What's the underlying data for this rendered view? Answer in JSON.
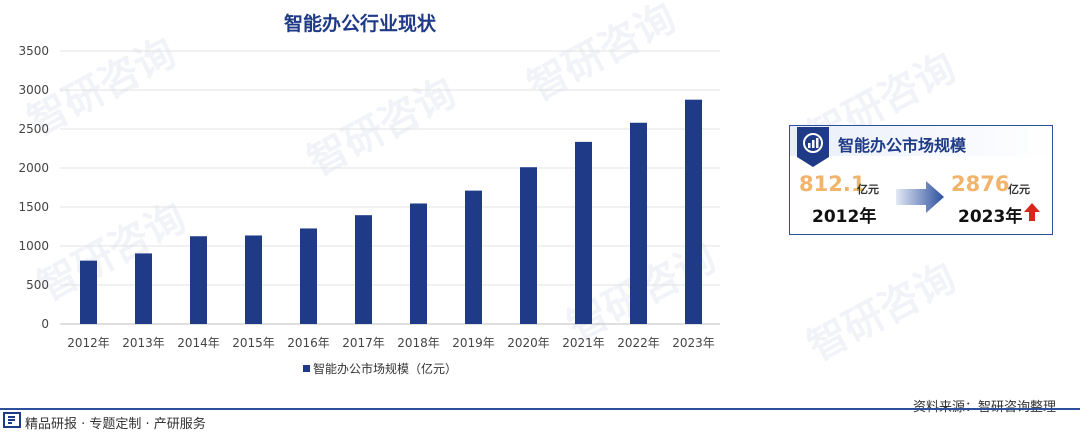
{
  "chart_data": {
    "type": "bar",
    "title": "智能办公行业现状",
    "categories": [
      "2012年",
      "2013年",
      "2014年",
      "2015年",
      "2016年",
      "2017年",
      "2018年",
      "2019年",
      "2020年",
      "2021年",
      "2022年",
      "2023年"
    ],
    "series": [
      {
        "name": "智能办公市场规模（亿元）",
        "values": [
          812.1,
          905,
          1125,
          1135,
          1225,
          1395,
          1545,
          1710,
          2010,
          2335,
          2580,
          2876
        ]
      }
    ],
    "ylim": [
      0,
      3500
    ],
    "yticks": [
      0,
      500,
      1000,
      1500,
      2000,
      2500,
      3000,
      3500
    ],
    "grid": true,
    "legend_position": "bottom",
    "bar_color": "#1f3a86"
  },
  "card": {
    "title": "智能办公市场规模",
    "start_value": "812.1",
    "start_unit": "亿元",
    "start_year": "2012年",
    "end_value": "2876",
    "end_unit": "亿元",
    "end_year": "2023年"
  },
  "footer": {
    "source": "资料来源：智研咨询整理",
    "tagline": "精品研报 · 专题定制 · 产研服务"
  },
  "colors": {
    "primary": "#1f3a86",
    "accent": "#f2b36a",
    "up_arrow": "#d9261c"
  }
}
